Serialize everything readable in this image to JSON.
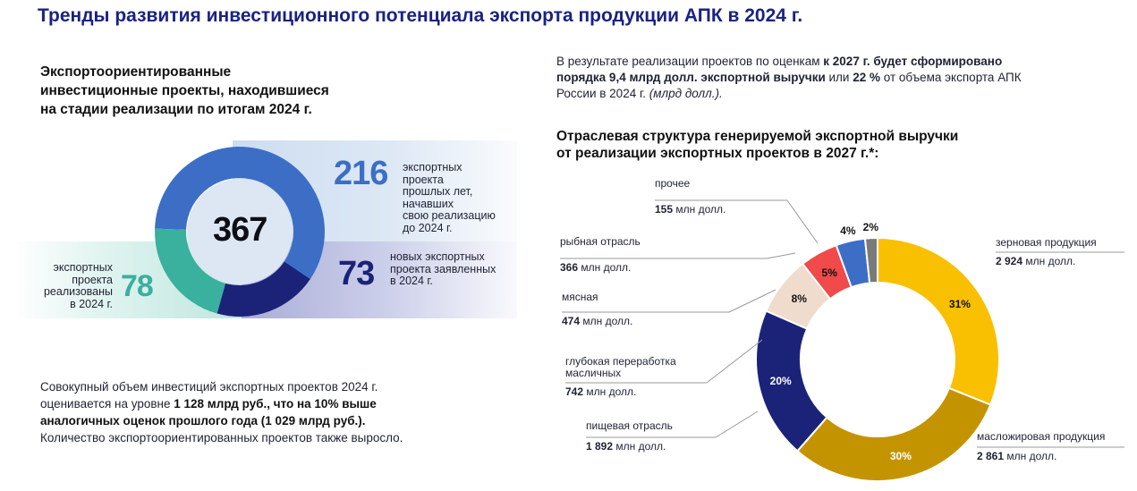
{
  "title": "Тренды развития инвестиционного потенциала экспорта продукции АПК в 2024 г.",
  "left": {
    "heading_lines": [
      "Экспортоориентированные",
      "инвестиционные проекты, находившиеся",
      "на стадии реализации по итогам 2024 г."
    ],
    "total": "367",
    "segments": [
      {
        "value": 216,
        "value_label": "216",
        "desc_lines": [
          "экспортных",
          "проекта",
          "прошлых лет,",
          "начавших",
          "свою реализацию",
          "до 2024 г."
        ],
        "color": "#3d6ec6"
      },
      {
        "value": 73,
        "value_label": "73",
        "desc_lines": [
          "новых экспортных",
          "проекта заявленных",
          "в 2024 г."
        ],
        "color": "#1b2378"
      },
      {
        "value": 78,
        "value_label": "78",
        "desc_lines": [
          "экспортных",
          "проекта",
          "реализованы",
          "в 2024 г."
        ],
        "color": "#3ab09e"
      }
    ],
    "para_lines": [
      [
        {
          "t": "Совокупный объем инвестиций экспортных проектов 2024 г.",
          "b": false
        }
      ],
      [
        {
          "t": "оценивается на уровне ",
          "b": false
        },
        {
          "t": "1 128 млрд руб., что на 10% выше",
          "b": true
        }
      ],
      [
        {
          "t": "аналогичных оценок прошлого года (1 029 млрд руб.).",
          "b": true
        }
      ],
      [
        {
          "t": "Количество экспортоориентированных проектов также выросло.",
          "b": false
        }
      ]
    ]
  },
  "right": {
    "para_lines": [
      [
        {
          "t": "В результате реализации проектов по оценкам ",
          "s": "n"
        },
        {
          "t": "к 2027 г. будет сформировано",
          "s": "b"
        }
      ],
      [
        {
          "t": "порядка 9,4 млрд долл. экспортной выручки",
          "s": "b"
        },
        {
          "t": " или ",
          "s": "n"
        },
        {
          "t": "22 %",
          "s": "b"
        },
        {
          "t": " от объема экспорта АПК",
          "s": "n"
        }
      ],
      [
        {
          "t": "России в 2024 г. ",
          "s": "n"
        },
        {
          "t": "(млрд долл.).",
          "s": "i"
        }
      ]
    ],
    "heading_lines": [
      "Отраслевая структура генерируемой экспортной выручки",
      "от реализации экспортных проектов в 2027 г.*:"
    ]
  },
  "chart_data": {
    "type": "pie",
    "unit": "млн долл.",
    "categories": [
      "зерновая продукция",
      "масложировая продукция",
      "пищевая отрасль",
      "глубокая переработка масличных",
      "мясная",
      "рыбная отрасль",
      "прочее"
    ],
    "values": [
      2924,
      2861,
      1892,
      742,
      474,
      366,
      155
    ],
    "value_labels": [
      "2 924",
      "2 861",
      "1 892",
      "742",
      "474",
      "366",
      "155"
    ],
    "percent_labels": [
      "31%",
      "30%",
      "20%",
      "8%",
      "5%",
      "4%",
      "2%"
    ],
    "colors": [
      "#f8c000",
      "#c49400",
      "#1b2378",
      "#efdccc",
      "#f04a4a",
      "#3d6ec6",
      "#7a7a7a"
    ],
    "percent_text_colors": [
      "#111111",
      "#ffffff",
      "#ffffff",
      "#111111",
      "#111111",
      "#111111",
      "#111111"
    ],
    "start_angle_deg": 0
  }
}
